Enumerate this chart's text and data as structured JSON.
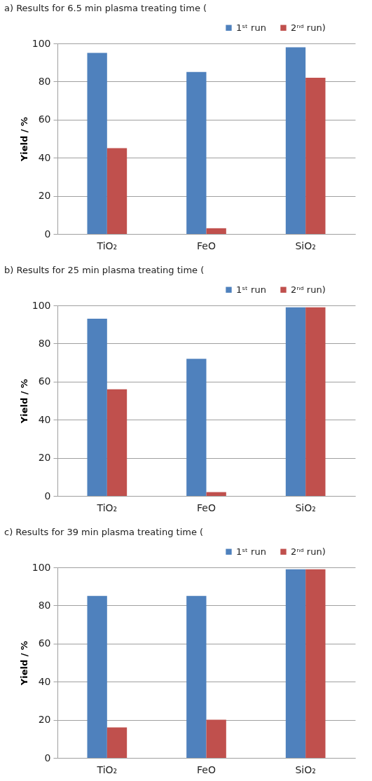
{
  "chart_data": [
    {
      "type": "bar",
      "title": "a) Results for 6.5 min plasma treating time (",
      "ylabel": "Yield / %",
      "categories": [
        "TiO₂",
        "FeO",
        "SiO₂"
      ],
      "series": [
        {
          "name": "1ˢᵗ run",
          "color": "#4f81bd",
          "values": [
            95,
            85,
            98
          ]
        },
        {
          "name": "2ⁿᵈ run)",
          "color": "#c0504d",
          "values": [
            45,
            3,
            82
          ]
        }
      ],
      "ylim": [
        0,
        100
      ],
      "yticks": [
        0,
        20,
        40,
        60,
        80,
        100
      ],
      "grid": "y",
      "legend": "top right"
    },
    {
      "type": "bar",
      "title": "b) Results for 25 min plasma treating time (",
      "ylabel": "Yield / %",
      "categories": [
        "TiO₂",
        "FeO",
        "SiO₂"
      ],
      "series": [
        {
          "name": "1ˢᵗ run",
          "color": "#4f81bd",
          "values": [
            93,
            72,
            99
          ]
        },
        {
          "name": "2ⁿᵈ run)",
          "color": "#c0504d",
          "values": [
            56,
            2,
            99
          ]
        }
      ],
      "ylim": [
        0,
        100
      ],
      "yticks": [
        0,
        20,
        40,
        60,
        80,
        100
      ],
      "grid": "y",
      "legend": "top right"
    },
    {
      "type": "bar",
      "title": "c) Results for 39 min plasma treating time (",
      "ylabel": "Yield / %",
      "categories": [
        "TiO₂",
        "FeO",
        "SiO₂"
      ],
      "series": [
        {
          "name": "1ˢᵗ run",
          "color": "#4f81bd",
          "values": [
            85,
            85,
            99
          ]
        },
        {
          "name": "2ⁿᵈ run)",
          "color": "#c0504d",
          "values": [
            16,
            20,
            99
          ]
        }
      ],
      "ylim": [
        0,
        100
      ],
      "yticks": [
        0,
        20,
        40,
        60,
        80,
        100
      ],
      "grid": "y",
      "legend": "top right"
    }
  ]
}
